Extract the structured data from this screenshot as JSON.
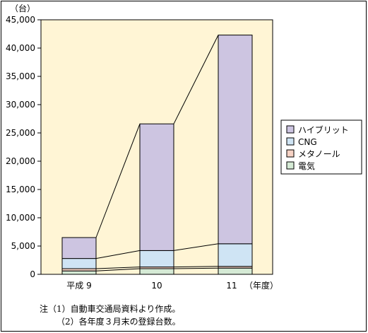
{
  "chart_data": {
    "type": "bar",
    "stacked": true,
    "unit_label": "（台）",
    "xlabel": "（年度）",
    "categories": [
      "平成 9",
      "10",
      "11"
    ],
    "ylim": [
      0,
      45000
    ],
    "yticks": [
      0,
      5000,
      10000,
      15000,
      20000,
      25000,
      30000,
      35000,
      40000,
      45000
    ],
    "ytick_labels": [
      "0",
      "5,000",
      "10,000",
      "15,000",
      "20,000",
      "25,000",
      "30,000",
      "35,000",
      "40,000",
      "45,000"
    ],
    "series": [
      {
        "name": "電気",
        "values": [
          600,
          1000,
          1100
        ],
        "color": "#d5ead5"
      },
      {
        "name": "メタノール",
        "values": [
          400,
          300,
          300
        ],
        "color": "#f6d2c4"
      },
      {
        "name": "CNG",
        "values": [
          1800,
          2900,
          4000
        ],
        "color": "#cfe4f4"
      },
      {
        "name": "ハイブリット",
        "values": [
          3700,
          22400,
          36900
        ],
        "color": "#cdc5e1"
      }
    ],
    "legend": {
      "placement": "right",
      "order": [
        "ハイブリット",
        "CNG",
        "メタノール",
        "電気"
      ]
    },
    "plot_background": "#fff5d5",
    "grid": false
  },
  "notes": {
    "line1": "注（1）自動車交通局資料より作成。",
    "line2": "（2）各年度３月末の登録台数。"
  }
}
